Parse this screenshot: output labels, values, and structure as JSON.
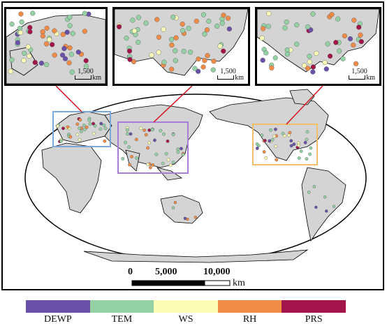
{
  "map": {
    "colors": {
      "land": "#d4d4d4",
      "ocean": "#ffffff",
      "europe_box": "#7aa7dc",
      "asia_box": "#a77ed9",
      "namerica_box": "#efbf6e",
      "connector": "#d0161c"
    },
    "insets": {
      "europe": {
        "scale_value": "1,500",
        "scale_unit": "km"
      },
      "asia": {
        "scale_value": "1,500",
        "scale_unit": "km"
      },
      "namerica": {
        "scale_value": "1,500",
        "scale_unit": "km"
      }
    },
    "scalebar": {
      "ticks": [
        "0",
        "5,000",
        "10,000"
      ],
      "unit": "km"
    }
  },
  "legend": {
    "items": [
      {
        "label": "DEWP",
        "color": "#6a50a8"
      },
      {
        "label": "TEM",
        "color": "#94d2a6"
      },
      {
        "label": "WS",
        "color": "#fdfdb8"
      },
      {
        "label": "RH",
        "color": "#f08c48"
      },
      {
        "label": "PRS",
        "color": "#a3144a"
      }
    ]
  }
}
